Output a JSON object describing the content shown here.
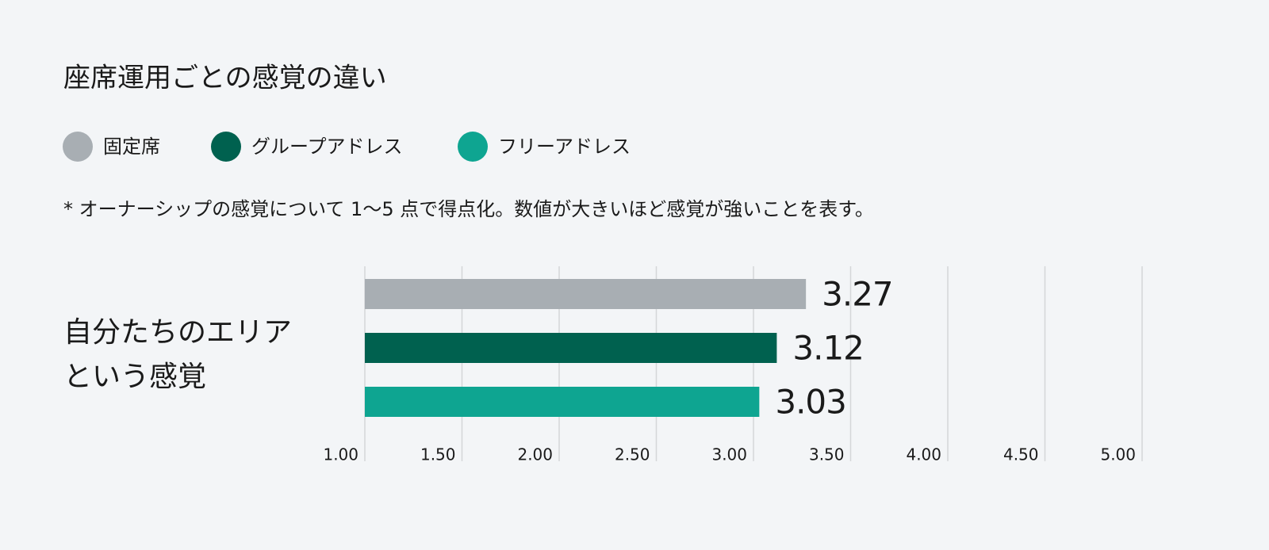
{
  "chart_data": {
    "type": "barh",
    "title": "座席運用ごとの感覚の違い",
    "note": "* オーナーシップの感覚について 1〜5 点で得点化。数値が大きいほど感覚が強いことを表す。",
    "categories": [
      "自分たちのエリアという感覚"
    ],
    "series": [
      {
        "name": "固定席",
        "color": "#a8aeb3",
        "label_color": "#6b6e71",
        "values": [
          3.27
        ]
      },
      {
        "name": "グループアドレス",
        "color": "#00614f",
        "label_color": "#0a5f50",
        "values": [
          3.12
        ]
      },
      {
        "name": "フリーアドレス",
        "color": "#0ea591",
        "label_color": "#14a08f",
        "values": [
          3.03
        ]
      }
    ],
    "xlim": [
      1,
      5
    ],
    "xticks": [
      {
        "value": 1,
        "label": "1.00"
      },
      {
        "value": 1.5,
        "label": "1.50"
      },
      {
        "value": 2,
        "label": "2.00"
      },
      {
        "value": 2.5,
        "label": "2.50"
      },
      {
        "value": 3,
        "label": "3.00"
      },
      {
        "value": 3.5,
        "label": "3.50"
      },
      {
        "value": 4,
        "label": "4.00"
      },
      {
        "value": 4.5,
        "label": "4.50"
      },
      {
        "value": 5,
        "label": "5.00"
      }
    ],
    "grid": true
  }
}
